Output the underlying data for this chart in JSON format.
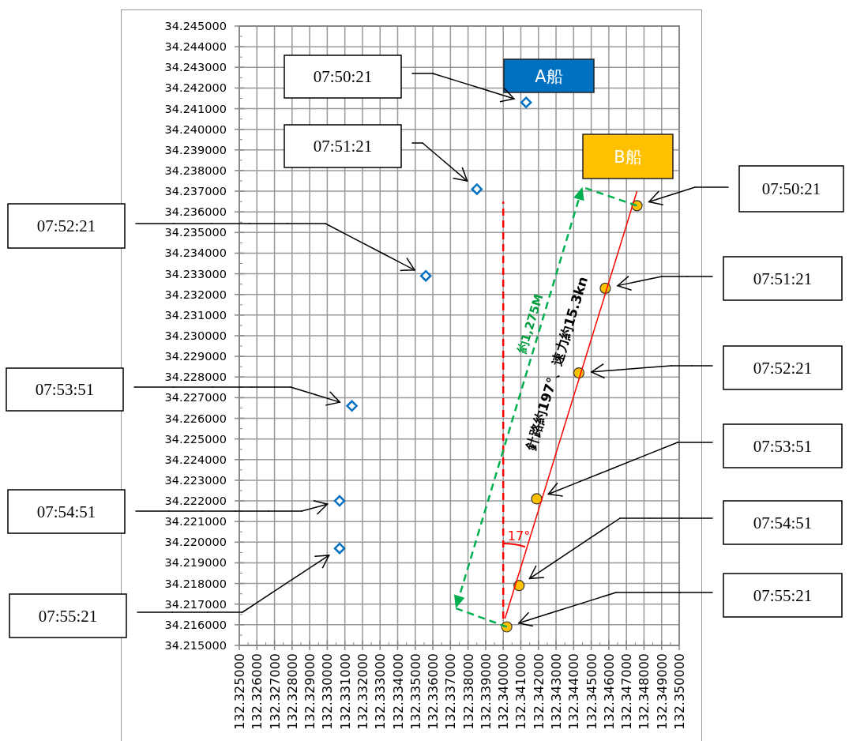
{
  "chart_data": {
    "type": "scatter",
    "xlim": [
      132.325,
      132.35
    ],
    "ylim": [
      34.215,
      34.245
    ],
    "xticks": [
      {
        "value": 132.325,
        "label": "132.325000"
      },
      {
        "value": 132.326,
        "label": "132.326000"
      },
      {
        "value": 132.327,
        "label": "132.327000"
      },
      {
        "value": 132.328,
        "label": "132.328000"
      },
      {
        "value": 132.329,
        "label": "132.329000"
      },
      {
        "value": 132.33,
        "label": "132.330000"
      },
      {
        "value": 132.331,
        "label": "132.331000"
      },
      {
        "value": 132.332,
        "label": "132.332000"
      },
      {
        "value": 132.333,
        "label": "132.333000"
      },
      {
        "value": 132.334,
        "label": "132.334000"
      },
      {
        "value": 132.335,
        "label": "132.335000"
      },
      {
        "value": 132.336,
        "label": "132.336000"
      },
      {
        "value": 132.337,
        "label": "132.337000"
      },
      {
        "value": 132.338,
        "label": "132.338000"
      },
      {
        "value": 132.339,
        "label": "132.339000"
      },
      {
        "value": 132.34,
        "label": "132.340000"
      },
      {
        "value": 132.341,
        "label": "132.341000"
      },
      {
        "value": 132.342,
        "label": "132.342000"
      },
      {
        "value": 132.343,
        "label": "132.343000"
      },
      {
        "value": 132.344,
        "label": "132.344000"
      },
      {
        "value": 132.345,
        "label": "132.345000"
      },
      {
        "value": 132.346,
        "label": "132.346000"
      },
      {
        "value": 132.347,
        "label": "132.347000"
      },
      {
        "value": 132.348,
        "label": "132.348000"
      },
      {
        "value": 132.349,
        "label": "132.349000"
      },
      {
        "value": 132.35,
        "label": "132.350000"
      }
    ],
    "yticks": [
      {
        "value": 34.215,
        "label": "34.215000"
      },
      {
        "value": 34.216,
        "label": "34.216000"
      },
      {
        "value": 34.217,
        "label": "34.217000"
      },
      {
        "value": 34.218,
        "label": "34.218000"
      },
      {
        "value": 34.219,
        "label": "34.219000"
      },
      {
        "value": 34.22,
        "label": "34.220000"
      },
      {
        "value": 34.221,
        "label": "34.221000"
      },
      {
        "value": 34.222,
        "label": "34.222000"
      },
      {
        "value": 34.223,
        "label": "34.223000"
      },
      {
        "value": 34.224,
        "label": "34.224000"
      },
      {
        "value": 34.225,
        "label": "34.225000"
      },
      {
        "value": 34.226,
        "label": "34.226000"
      },
      {
        "value": 34.227,
        "label": "34.227000"
      },
      {
        "value": 34.228,
        "label": "34.228000"
      },
      {
        "value": 34.229,
        "label": "34.229000"
      },
      {
        "value": 34.23,
        "label": "34.230000"
      },
      {
        "value": 34.231,
        "label": "34.231000"
      },
      {
        "value": 34.232,
        "label": "34.232000"
      },
      {
        "value": 34.233,
        "label": "34.233000"
      },
      {
        "value": 34.234,
        "label": "34.234000"
      },
      {
        "value": 34.235,
        "label": "34.235000"
      },
      {
        "value": 34.236,
        "label": "34.236000"
      },
      {
        "value": 34.237,
        "label": "34.237000"
      },
      {
        "value": 34.238,
        "label": "34.238000"
      },
      {
        "value": 34.239,
        "label": "34.239000"
      },
      {
        "value": 34.24,
        "label": "34.240000"
      },
      {
        "value": 34.241,
        "label": "34.241000"
      },
      {
        "value": 34.242,
        "label": "34.242000"
      },
      {
        "value": 34.243,
        "label": "34.243000"
      },
      {
        "value": 34.244,
        "label": "34.244000"
      },
      {
        "value": 34.245,
        "label": "34.245000"
      }
    ],
    "grid": true,
    "legend": "top right",
    "series": [
      {
        "name": "A船",
        "marker": "diamond",
        "color": "#0070c0",
        "x": [
          132.3413,
          132.3385,
          132.3356,
          132.3314,
          132.3307,
          132.3307
        ],
        "values": [
          34.2413,
          34.2371,
          34.2329,
          34.2266,
          34.222,
          34.2197
        ]
      },
      {
        "name": "B船",
        "marker": "circle",
        "color": "#ffc000",
        "x": [
          132.3476,
          132.3458,
          132.3443,
          132.3419,
          132.3409,
          132.3402
        ],
        "values": [
          34.2363,
          34.2323,
          34.2282,
          34.2221,
          34.2179,
          34.2159
        ]
      },
      {
        "type": "line",
        "marker": "none",
        "line_style": "solid",
        "color": "#ff0000",
        "x": [
          132.3401,
          132.3476
        ],
        "values": [
          34.2163,
          34.237
        ]
      },
      {
        "type": "line",
        "marker": "none",
        "line_style": "dashed",
        "color": "#ff0000",
        "x": [
          132.34,
          132.34
        ],
        "values": [
          34.2163,
          34.2365
        ]
      },
      {
        "type": "line",
        "marker": "none",
        "line_style": "dashed",
        "color": "#00b050",
        "x": [
          132.3476,
          132.3445,
          132.3373,
          132.3402
        ],
        "values": [
          34.2363,
          34.2372,
          34.2168,
          34.2159
        ]
      }
    ],
    "annotations": [
      "07:50:21",
      "07:51:21",
      "07:52:21",
      "07:53:51",
      "07:54:51",
      "07:55:21",
      "07:50:21",
      "07:51:21",
      "07:52:21",
      "07:53:51",
      "07:54:51",
      "07:55:21",
      "針路約197°、速力約15.3kn",
      "約1,275M",
      "17°"
    ]
  }
}
